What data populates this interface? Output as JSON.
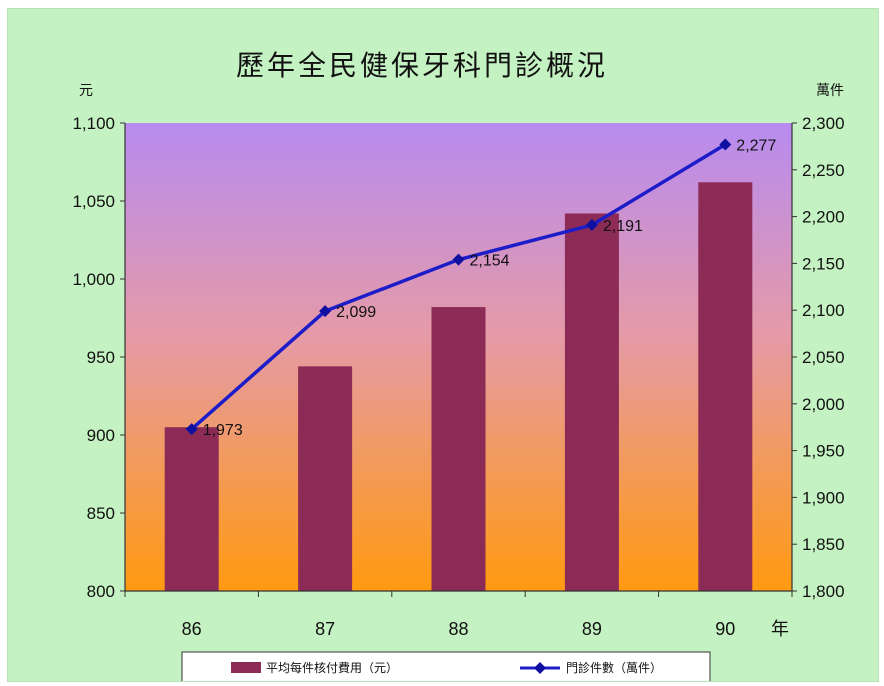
{
  "colors": {
    "background": "#c5f2c2",
    "plot_top": "#b78bf0",
    "plot_bottom": "#ff9a10",
    "bar": "#8c2b55",
    "line": "#1c1cc8",
    "marker": "#1010a0"
  },
  "chart_data": {
    "type": "bar",
    "title": "歷年全民健保牙科門診概況",
    "categories": [
      "86",
      "87",
      "88",
      "89",
      "90"
    ],
    "x_unit": "年",
    "left_axis": {
      "unit": "元",
      "ylim": [
        800,
        1100
      ],
      "ticks": [
        "800",
        "850",
        "900",
        "950",
        "1,000",
        "1,050",
        "1,100"
      ]
    },
    "right_axis": {
      "unit": "萬件",
      "ylim": [
        1800,
        2300
      ],
      "ticks": [
        "1,800",
        "1,850",
        "1,900",
        "1,950",
        "2,000",
        "2,050",
        "2,100",
        "2,150",
        "2,200",
        "2,250",
        "2,300"
      ]
    },
    "series": [
      {
        "name": "平均每件核付費用（元）",
        "type": "bar",
        "axis": "left",
        "values": [
          905,
          944,
          982,
          1042,
          1062
        ]
      },
      {
        "name": "門診件數（萬件）",
        "type": "line",
        "axis": "right",
        "values": [
          1973,
          2099,
          2154,
          2191,
          2277
        ],
        "labels": [
          "1,973",
          "2,099",
          "2,154",
          "2,191",
          "2,277"
        ]
      }
    ],
    "grid": false,
    "legend_position": "bottom"
  }
}
